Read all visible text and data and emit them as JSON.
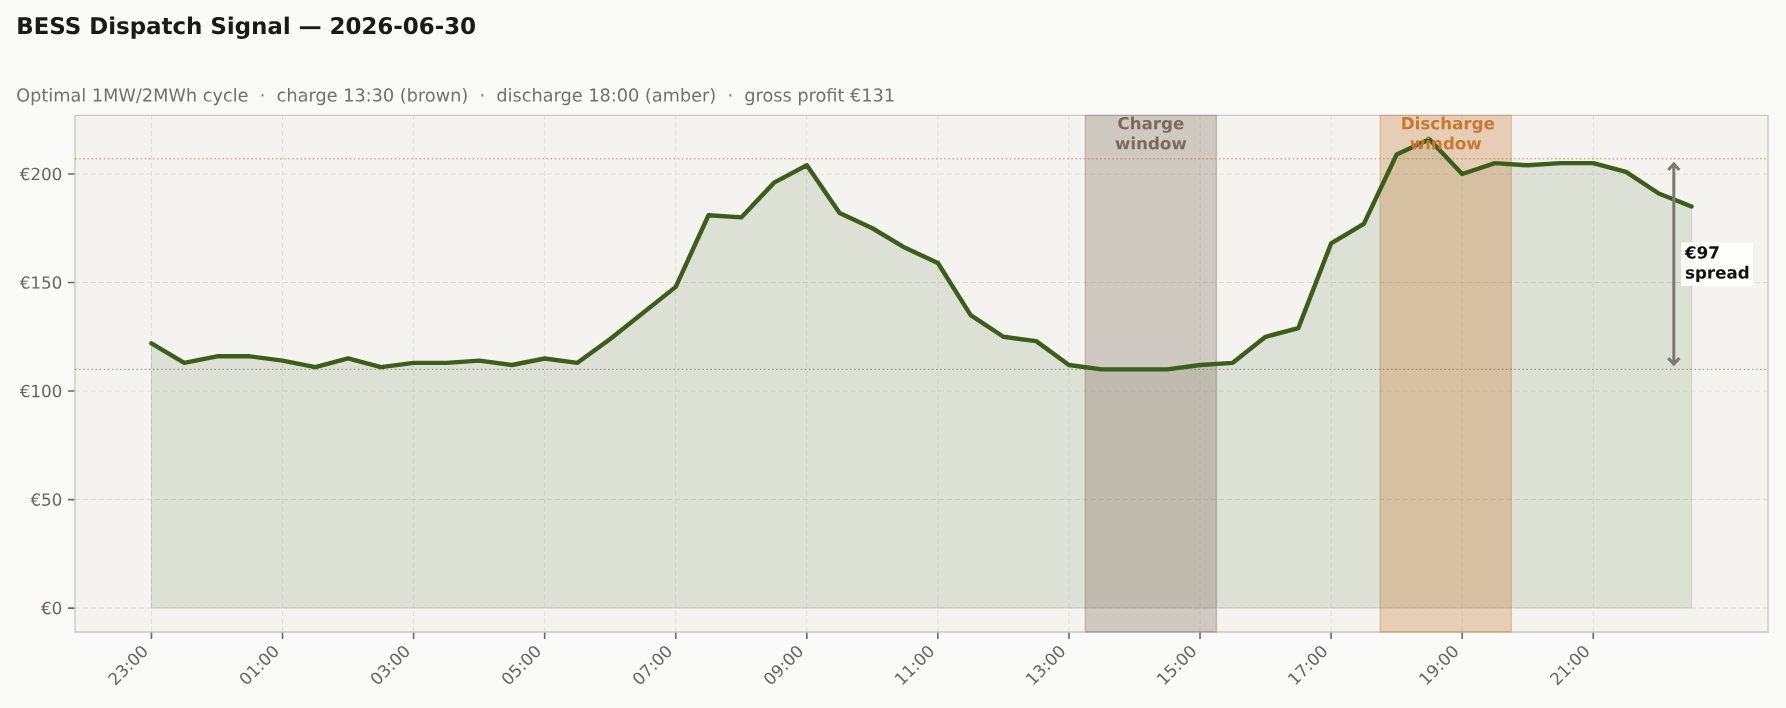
{
  "chart_data": {
    "type": "area",
    "title": "BESS Dispatch Signal — 2026-06-30",
    "subtitle": "Optimal 1MW/2MWh cycle  ·  charge 13:30 (brown)  ·  discharge 18:00 (amber)  ·  gross profit €131",
    "x": [
      "2026-06-29T23:00",
      "2026-06-29T23:30",
      "2026-06-30T00:00",
      "2026-06-30T00:30",
      "2026-06-30T01:00",
      "2026-06-30T01:30",
      "2026-06-30T02:00",
      "2026-06-30T02:30",
      "2026-06-30T03:00",
      "2026-06-30T03:30",
      "2026-06-30T04:00",
      "2026-06-30T04:30",
      "2026-06-30T05:00",
      "2026-06-30T05:30",
      "2026-06-30T06:00",
      "2026-06-30T06:30",
      "2026-06-30T07:00",
      "2026-06-30T07:30",
      "2026-06-30T08:00",
      "2026-06-30T08:30",
      "2026-06-30T09:00",
      "2026-06-30T09:30",
      "2026-06-30T10:00",
      "2026-06-30T10:30",
      "2026-06-30T11:00",
      "2026-06-30T11:30",
      "2026-06-30T12:00",
      "2026-06-30T12:30",
      "2026-06-30T13:00",
      "2026-06-30T13:30",
      "2026-06-30T14:00",
      "2026-06-30T14:30",
      "2026-06-30T15:00",
      "2026-06-30T15:30",
      "2026-06-30T16:00",
      "2026-06-30T16:30",
      "2026-06-30T17:00",
      "2026-06-30T17:30",
      "2026-06-30T18:00",
      "2026-06-30T18:30",
      "2026-06-30T19:00",
      "2026-06-30T19:30",
      "2026-06-30T20:00",
      "2026-06-30T20:30",
      "2026-06-30T21:00",
      "2026-06-30T21:30",
      "2026-06-30T22:00",
      "2026-06-30T22:30"
    ],
    "series": [
      {
        "color": "#3b5e1b",
        "values": [
          122,
          113,
          116,
          116,
          114,
          111,
          115,
          111,
          113,
          113,
          114,
          112,
          115,
          113,
          124,
          136,
          148,
          181,
          180,
          196,
          204,
          182,
          175,
          166,
          159,
          135,
          125,
          123,
          112,
          110,
          110,
          110,
          112,
          113,
          125,
          129,
          168,
          177,
          209,
          216,
          200,
          205,
          204,
          205,
          205,
          201,
          191,
          185
        ]
      }
    ],
    "xlim": [
      "2026-06-29T21:50",
      "2026-06-30T23:40"
    ],
    "xticks": [
      {
        "value": "2026-06-29T23:00",
        "label": "23:00"
      },
      {
        "value": "2026-06-30T01:00",
        "label": "01:00"
      },
      {
        "value": "2026-06-30T03:00",
        "label": "03:00"
      },
      {
        "value": "2026-06-30T05:00",
        "label": "05:00"
      },
      {
        "value": "2026-06-30T07:00",
        "label": "07:00"
      },
      {
        "value": "2026-06-30T09:00",
        "label": "09:00"
      },
      {
        "value": "2026-06-30T11:00",
        "label": "11:00"
      },
      {
        "value": "2026-06-30T13:00",
        "label": "13:00"
      },
      {
        "value": "2026-06-30T15:00",
        "label": "15:00"
      },
      {
        "value": "2026-06-30T17:00",
        "label": "17:00"
      },
      {
        "value": "2026-06-30T19:00",
        "label": "19:00"
      },
      {
        "value": "2026-06-30T21:00",
        "label": "21:00"
      }
    ],
    "ylim": [
      -11,
      227
    ],
    "yticks": [
      {
        "value": 0,
        "label": "€0"
      },
      {
        "value": 50,
        "label": "€50"
      },
      {
        "value": 100,
        "label": "€100"
      },
      {
        "value": 150,
        "label": "€150"
      },
      {
        "value": 200,
        "label": "€200"
      }
    ],
    "grid": true,
    "ref_lines": [
      {
        "axis": "y",
        "value": 110,
        "color": "#7a6a5a",
        "line_style": "dotted"
      },
      {
        "axis": "y",
        "value": 207,
        "color": "#c8782f",
        "line_style": "dotted"
      }
    ],
    "bands": [
      {
        "axis": "x",
        "from": "2026-06-30T13:15",
        "to": "2026-06-30T15:15",
        "label": "Charge window",
        "color": "#7a6a5a"
      },
      {
        "axis": "x",
        "from": "2026-06-30T17:45",
        "to": "2026-06-30T19:45",
        "label": "Discharge window",
        "color": "#c8782f"
      }
    ],
    "annotations": [
      "€97 spread"
    ]
  }
}
